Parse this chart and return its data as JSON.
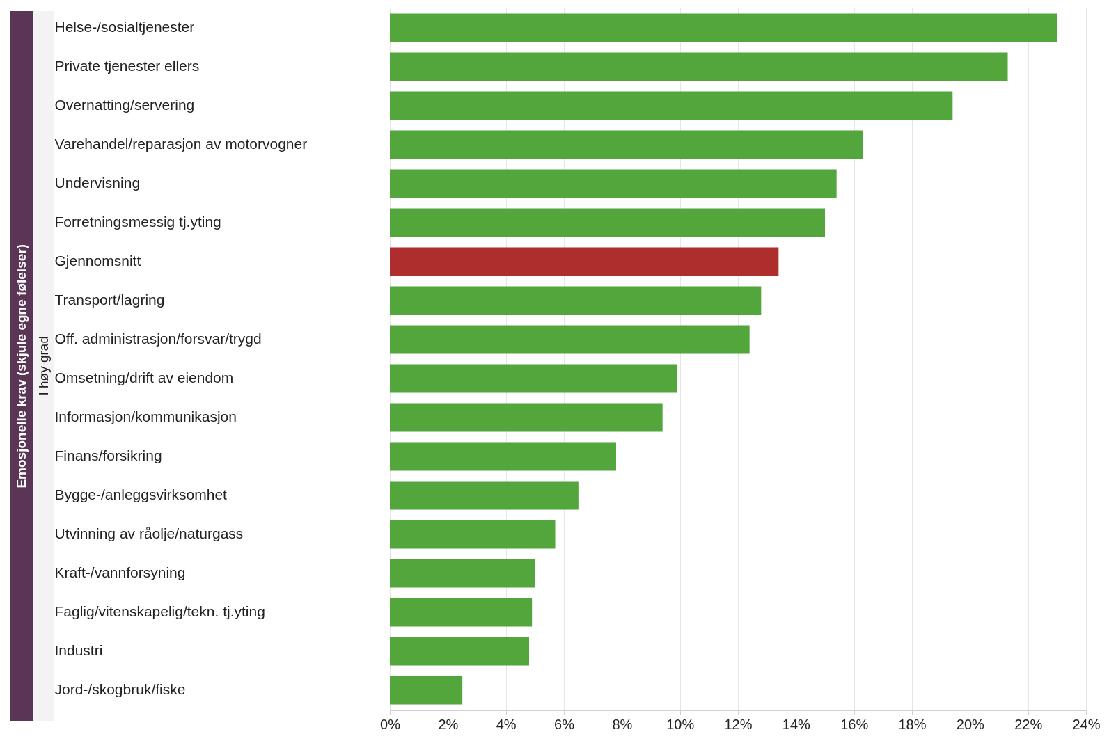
{
  "chart_data": {
    "type": "bar",
    "orientation": "horizontal",
    "ylabel": "Emosjonelle krav (skjule egne følelser)",
    "annotations": [
      "I høy grad"
    ],
    "categories": [
      "Helse-/sosialtjenester",
      "Private tjenester ellers",
      "Overnatting/servering",
      "Varehandel/reparasjon av motorvogner",
      "Undervisning",
      "Forretningsmessig tj.yting",
      "Gjennomsnitt",
      "Transport/lagring",
      "Off. administrasjon/forsvar/trygd",
      "Omsetning/drift av eiendom",
      "Informasjon/kommunikasjon",
      "Finans/forsikring",
      "Bygge-/anleggsvirksomhet",
      "Utvinning av råolje/naturgass",
      "Kraft-/vannforsyning",
      "Faglig/vitenskapelig/tekn. tj.yting",
      "Industri",
      "Jord-/skogbruk/fiske"
    ],
    "values": [
      23.0,
      21.3,
      19.4,
      16.3,
      15.4,
      15.0,
      13.4,
      12.8,
      12.4,
      9.9,
      9.4,
      7.8,
      6.5,
      5.7,
      5.0,
      4.9,
      4.8,
      2.5
    ],
    "colors": [
      "#53a63c",
      "#53a63c",
      "#53a63c",
      "#53a63c",
      "#53a63c",
      "#53a63c",
      "#ae2e2e",
      "#53a63c",
      "#53a63c",
      "#53a63c",
      "#53a63c",
      "#53a63c",
      "#53a63c",
      "#53a63c",
      "#53a63c",
      "#53a63c",
      "#53a63c",
      "#53a63c"
    ],
    "xlim": [
      0,
      24
    ],
    "xticks": [
      {
        "value": 0,
        "label": "0%"
      },
      {
        "value": 2,
        "label": "2%"
      },
      {
        "value": 4,
        "label": "4%"
      },
      {
        "value": 6,
        "label": "6%"
      },
      {
        "value": 8,
        "label": "8%"
      },
      {
        "value": 10,
        "label": "10%"
      },
      {
        "value": 12,
        "label": "12%"
      },
      {
        "value": 14,
        "label": "14%"
      },
      {
        "value": 16,
        "label": "16%"
      },
      {
        "value": 18,
        "label": "18%"
      },
      {
        "value": 20,
        "label": "20%"
      },
      {
        "value": 22,
        "label": "22%"
      },
      {
        "value": 24,
        "label": "24%"
      }
    ],
    "grid": "x"
  }
}
